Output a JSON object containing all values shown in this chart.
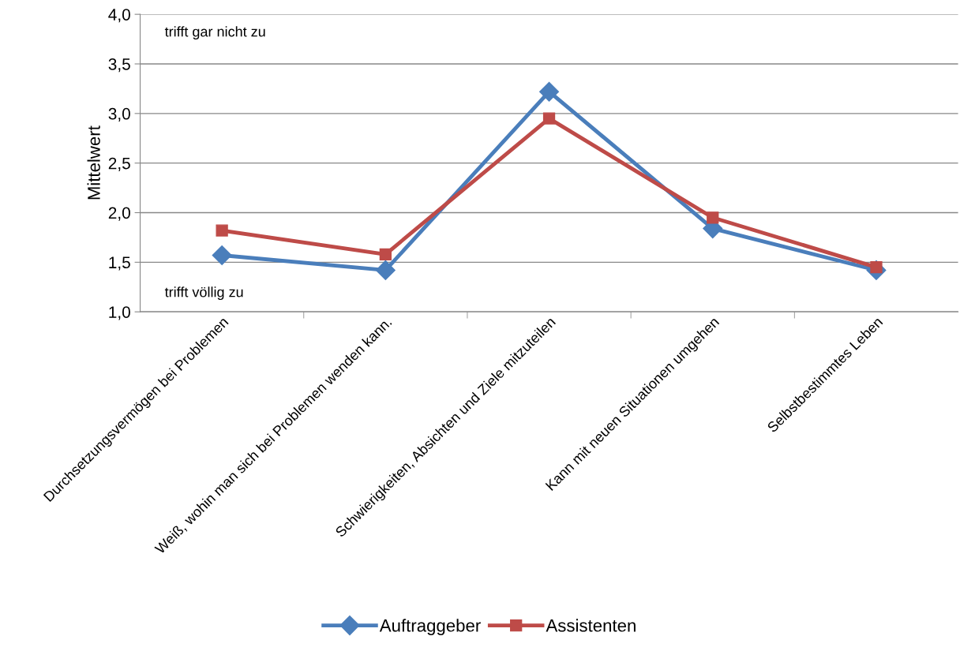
{
  "chart_data": {
    "type": "line",
    "ylabel": "Mittelwert",
    "categories": [
      "Durchsetzungsvermögen bei Problemen",
      "Weiß, wohin man sich bei Problemen wenden kann.",
      "Schwierigkeiten, Absichten und Ziele mitzuteilen",
      "Kann mit neuen Situationen umgehen",
      "Selbstbestimmtes Leben"
    ],
    "series": [
      {
        "name": "Auftraggeber",
        "color": "#4a7ebb",
        "marker": "diamond",
        "values": [
          1.57,
          1.42,
          3.22,
          1.84,
          1.42
        ]
      },
      {
        "name": "Assistenten",
        "color": "#be4b48",
        "marker": "square",
        "values": [
          1.82,
          1.58,
          2.95,
          1.95,
          1.45
        ]
      }
    ],
    "ylim": [
      1.0,
      4.0
    ],
    "yticks": [
      {
        "value": 1.0,
        "label": "1,0"
      },
      {
        "value": 1.5,
        "label": "1,5"
      },
      {
        "value": 2.0,
        "label": "2,0"
      },
      {
        "value": 2.5,
        "label": "2,5"
      },
      {
        "value": 3.0,
        "label": "3,0"
      },
      {
        "value": 3.5,
        "label": "3,5"
      },
      {
        "value": 4.0,
        "label": "4,0"
      }
    ],
    "annotations": [
      "trifft gar nicht zu",
      "trifft völlig zu"
    ],
    "grid": "y",
    "legend": "bottom",
    "line_style": "solid"
  }
}
